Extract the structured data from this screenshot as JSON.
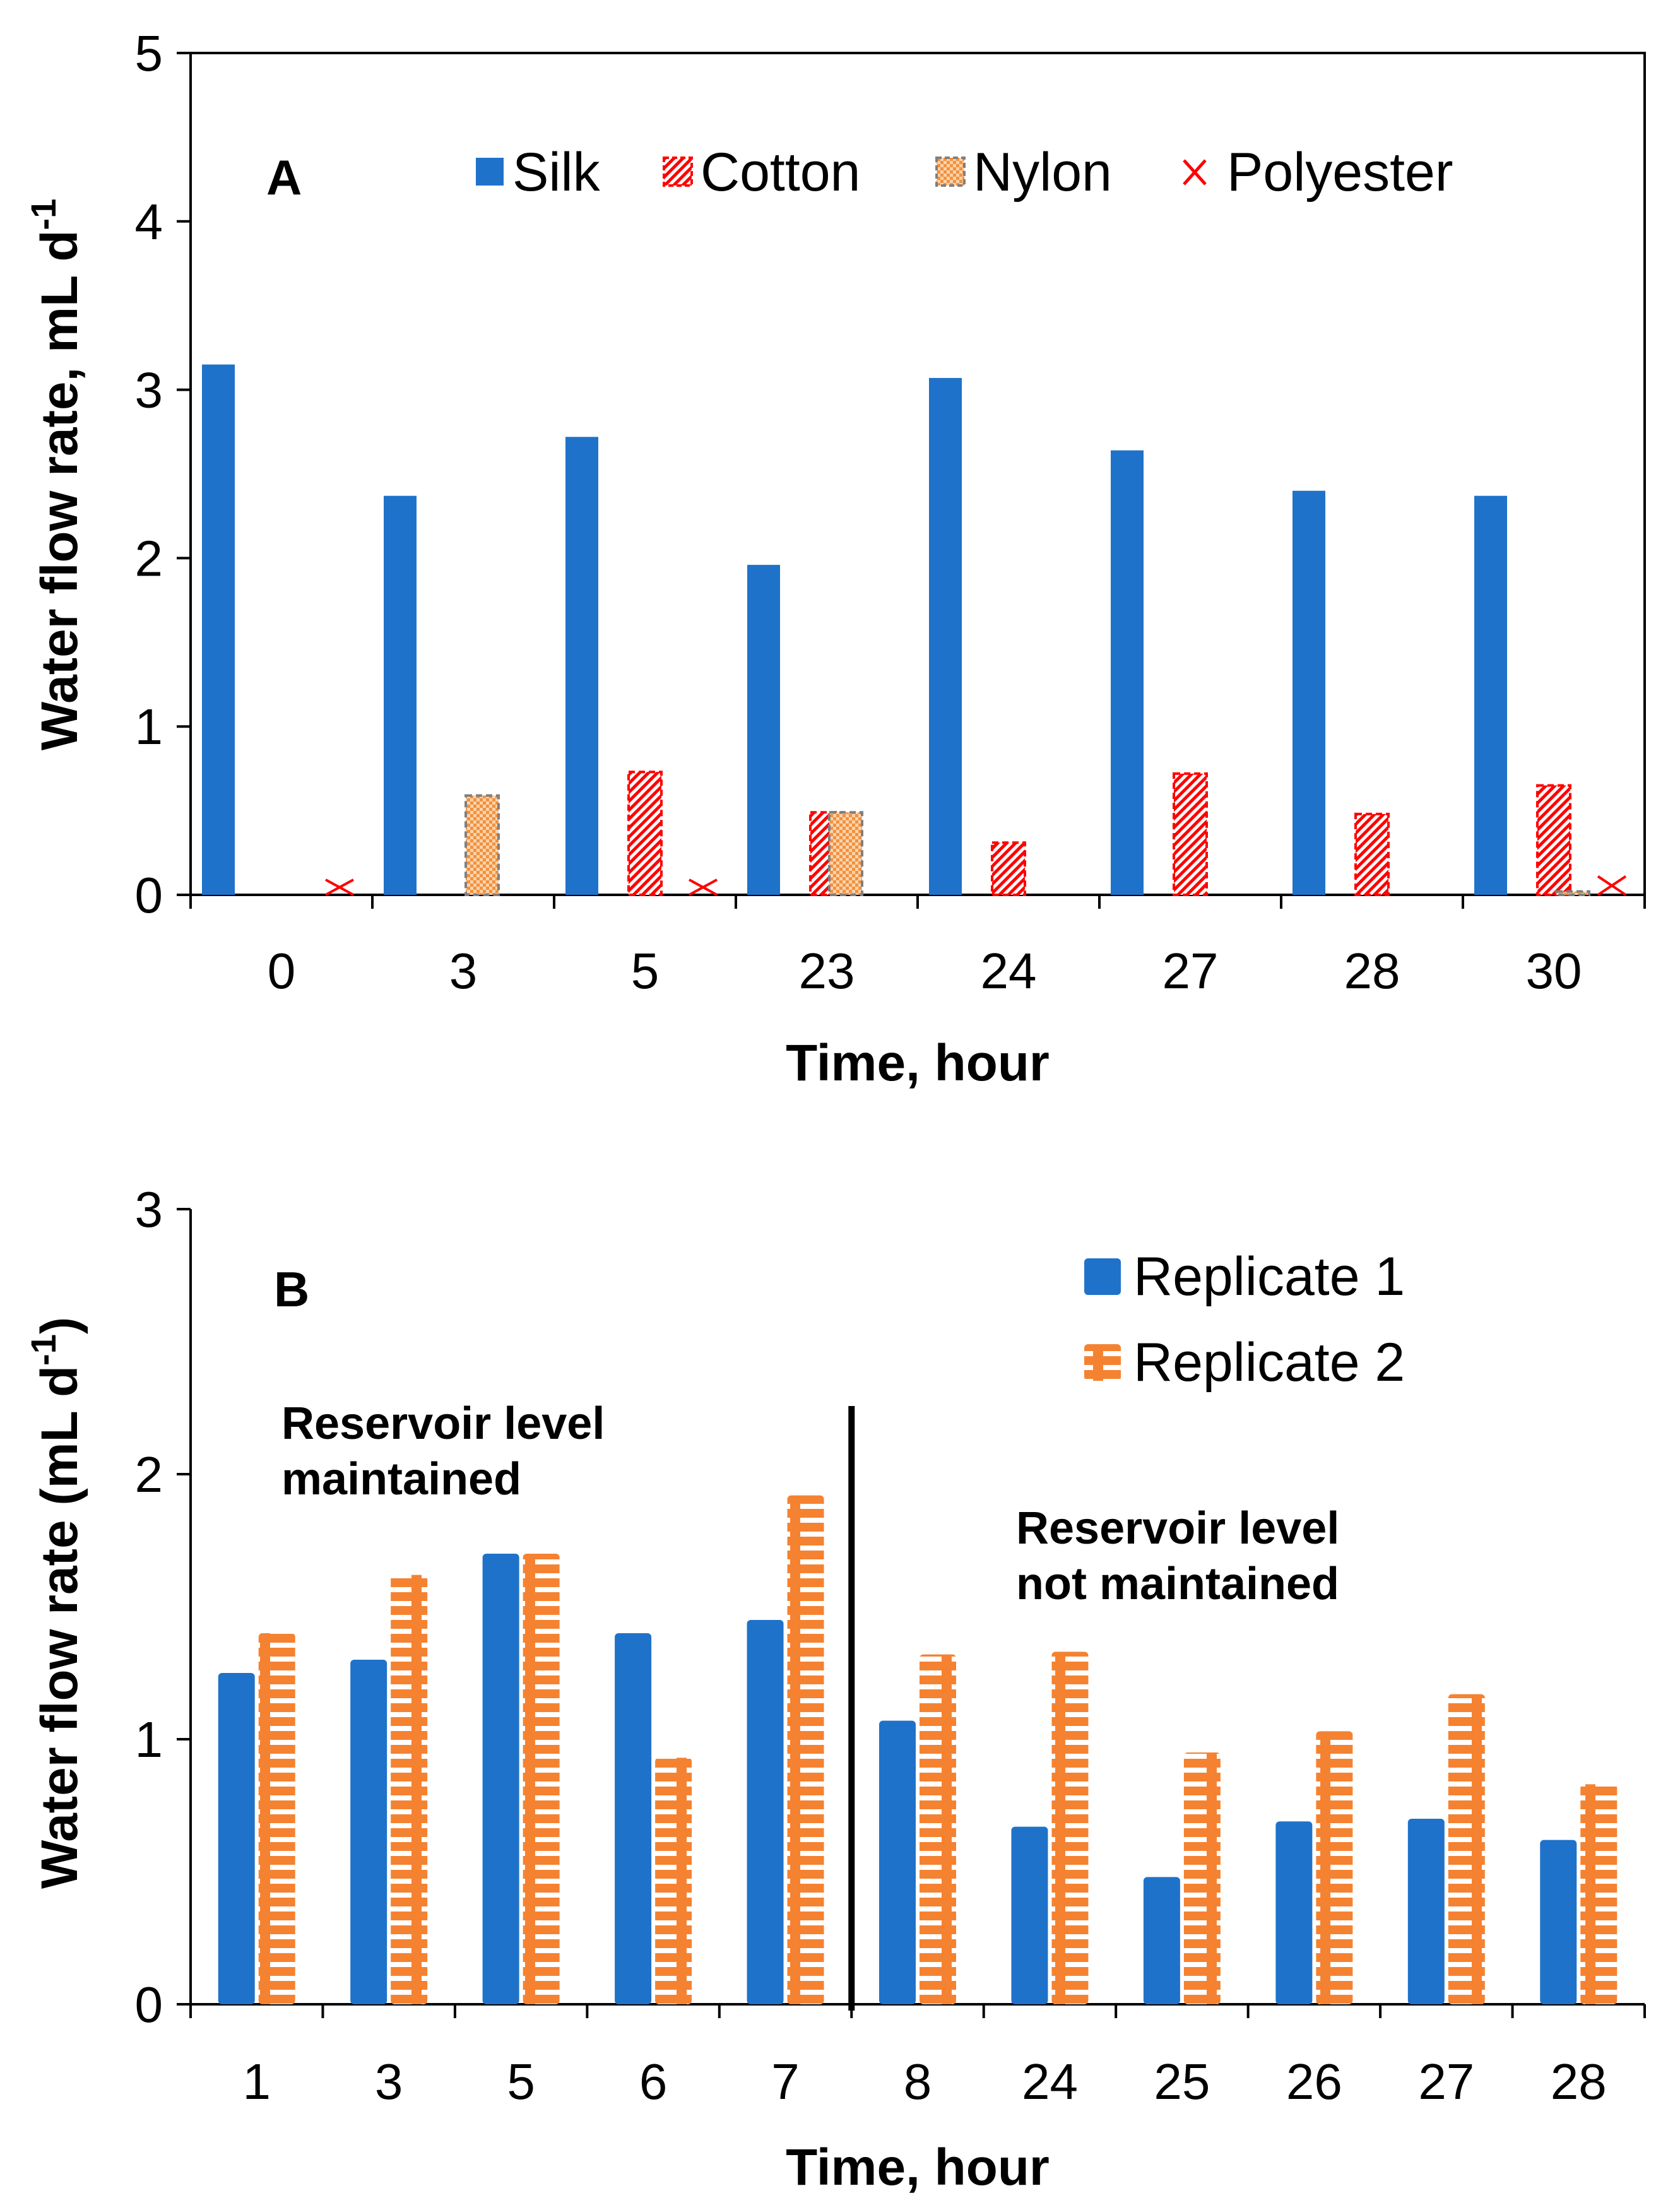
{
  "colors": {
    "silk": "#1F72C9",
    "cotton": "#FF0000",
    "nylon_fill": "#F2913D",
    "nylon_border": "#7F7F7F",
    "polyester": "#FF0000",
    "replicate1": "#1F72C9",
    "replicate2": "#F58231"
  },
  "chart_data": [
    {
      "type": "bar",
      "panel_label": "A",
      "title": "",
      "xlabel": "Time, hour",
      "ylabel": "Water flow rate, mL d",
      "ylabel_superscript": "-1",
      "ylim": [
        0,
        5
      ],
      "yticks": [
        "0",
        "1",
        "2",
        "3",
        "4",
        "5"
      ],
      "grid": false,
      "legend_position": "top",
      "categories": [
        "0",
        "3",
        "5",
        "23",
        "24",
        "27",
        "28",
        "30"
      ],
      "series": [
        {
          "name": "Silk",
          "values": [
            3.15,
            2.37,
            2.72,
            1.96,
            3.07,
            2.64,
            2.4,
            2.37
          ]
        },
        {
          "name": "Cotton",
          "values": [
            0,
            0,
            0.73,
            0.49,
            0.31,
            0.72,
            0.48,
            0.65
          ]
        },
        {
          "name": "Nylon",
          "values": [
            0,
            0.59,
            0,
            0.49,
            0,
            0,
            0,
            0.02
          ]
        },
        {
          "name": "Polyester",
          "values": [
            0.03,
            0,
            0.03,
            0,
            0,
            0,
            0,
            0.05
          ]
        }
      ]
    },
    {
      "type": "bar",
      "panel_label": "B",
      "title": "",
      "xlabel": "Time, hour",
      "ylabel": "Water flow rate (mL d",
      "ylabel_superscript": "-1",
      "ylabel_suffix": ")",
      "ylim": [
        0,
        3
      ],
      "yticks": [
        "0",
        "1",
        "2",
        "3"
      ],
      "grid": false,
      "legend_position": "top-right",
      "categories": [
        "1",
        "3",
        "5",
        "6",
        "7",
        "8",
        "24",
        "25",
        "26",
        "27",
        "28"
      ],
      "series": [
        {
          "name": "Replicate 1",
          "values": [
            1.25,
            1.3,
            1.7,
            1.4,
            1.45,
            1.07,
            0.67,
            0.48,
            0.69,
            0.7,
            0.62
          ]
        },
        {
          "name": "Replicate 2",
          "values": [
            1.4,
            1.62,
            1.7,
            0.93,
            1.92,
            1.32,
            1.33,
            0.95,
            1.03,
            1.17,
            0.83
          ]
        }
      ],
      "divider_after_category": "7",
      "annotations": [
        {
          "text_lines": [
            "Reservoir level",
            "maintained"
          ]
        },
        {
          "text_lines": [
            "Reservoir level",
            "not maintained"
          ]
        }
      ]
    }
  ]
}
